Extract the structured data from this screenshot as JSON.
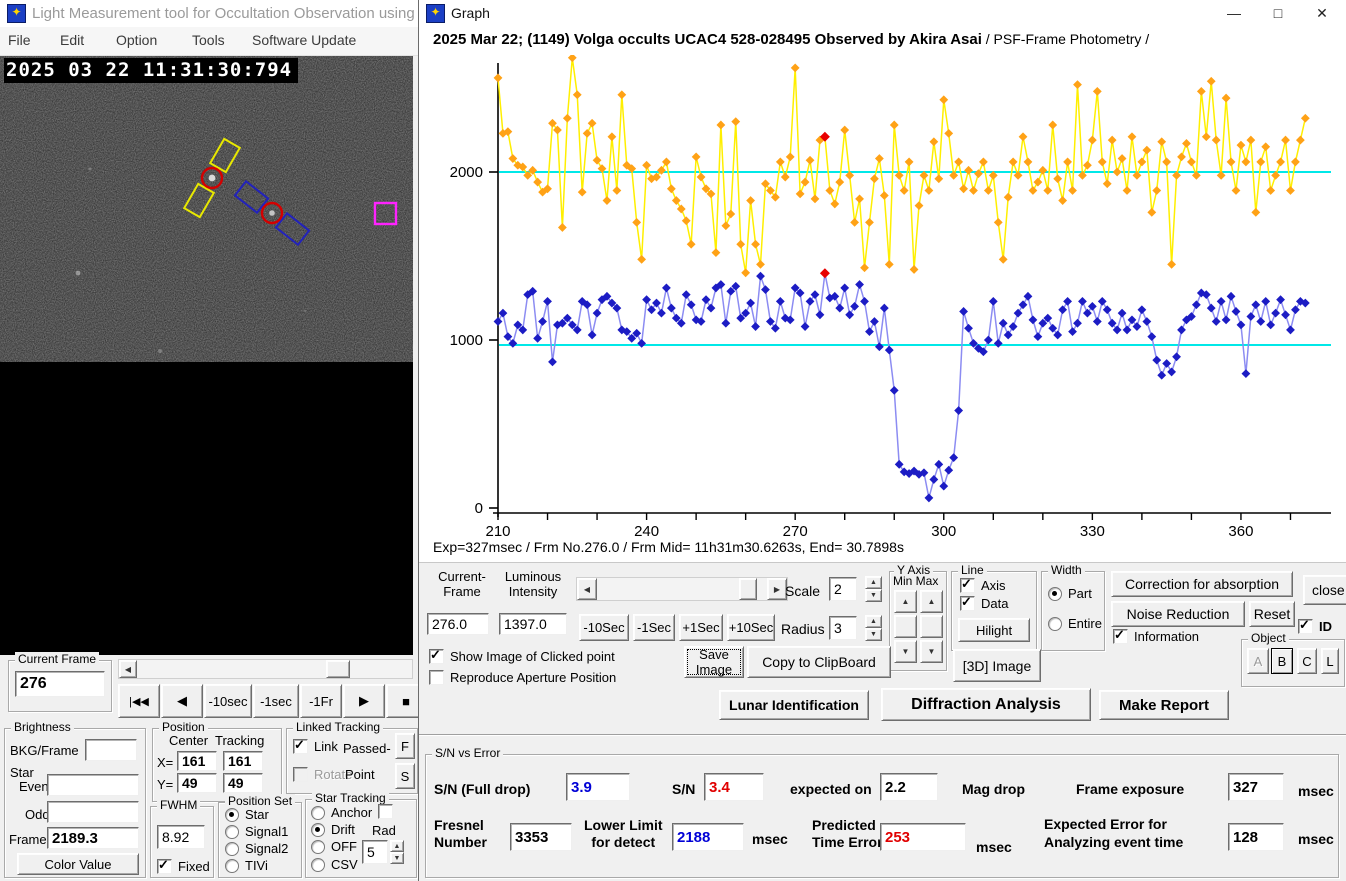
{
  "icons": {
    "app": "✦"
  },
  "glyphs": {
    "up": "▲",
    "down": "▼",
    "left": "◀",
    "right": "▶"
  },
  "left_window": {
    "title": "Light Measurement tool for Occultation Observation using",
    "menu": [
      "File",
      "Edit",
      "Option",
      "Tools",
      "Software Update"
    ],
    "video": {
      "timestamp": "2025 03 22 11:31:30:794"
    },
    "current_frame_group": {
      "label": "Current Frame",
      "value": "276"
    },
    "transport_buttons": [
      "|◀◀",
      "◀",
      "-10sec",
      "-1sec",
      "-1Fr",
      "▶",
      "■"
    ],
    "brightness": {
      "label": "Brightness",
      "bkg_frame": "BKG/Frame",
      "bkg_frame_value": "",
      "star": "Star",
      "even": "Even",
      "even_value": "",
      "odd": "Odd",
      "odd_value": "",
      "frame": "Frame",
      "frame_value": "2189.3",
      "color_value": "Color Value"
    },
    "position": {
      "label": "Position",
      "center": "Center",
      "tracking": "Tracking",
      "x": "X=",
      "y": "Y=",
      "x_center": "161",
      "x_tracking": "161",
      "y_center": "49",
      "y_tracking": "49"
    },
    "linked_tracking": {
      "label": "Linked Tracking",
      "link": "Link",
      "passed": "Passed-",
      "f": "F",
      "rotate": "Rotate",
      "point": "Point",
      "s": "S"
    },
    "fwhm": {
      "label": "FWHM",
      "value": "8.92",
      "fixed": "Fixed"
    },
    "position_set": {
      "label": "Position Set",
      "options": [
        "Star",
        "Signal1",
        "Signal2",
        "TIVi"
      ],
      "selected": "Star"
    },
    "star_tracking": {
      "label": "Star Tracking",
      "options": [
        "Anchor",
        "Drift",
        "OFF",
        "CSV"
      ],
      "selected": "Drift",
      "rad": "Rad",
      "rad_value": "5"
    }
  },
  "graph_window": {
    "title": "Graph",
    "win_minimize": "—",
    "win_maximize": "□",
    "win_close": "✕",
    "header_bold": "2025 Mar 22; (1149) Volga occults UCAC4 528-028495 Observed by Akira Asai",
    "header_normal": " / PSF-Frame Photometry /",
    "status_line": "Exp=327msec / Frm No.276.0 / Frm Mid= 11h31m30.6263s,  End= 30.7898s",
    "controls": {
      "current_frame_label_1": "Current-",
      "current_frame_label_2": "Frame",
      "current_frame_value": "276.0",
      "luminous_label_1": "Luminous",
      "luminous_label_2": "Intensity",
      "luminous_value": "1397.0",
      "sec_buttons": [
        "-10Sec",
        "-1Sec",
        "+1Sec",
        "+10Sec"
      ],
      "scale_label": "Scale",
      "scale_value": "2",
      "radius_label": "Radius",
      "radius_value": "3",
      "y_axis_label": "Y Axis",
      "y_axis_minmax": "Min Max",
      "line_label": "Line",
      "axis_cb": "Axis",
      "data_cb": "Data",
      "hilight": "Hilight",
      "width_label": "Width",
      "part": "Part",
      "entire": "Entire",
      "correction": "Correction for absorption",
      "noise_reduction": "Noise Reduction",
      "reset": "Reset",
      "close": "close",
      "information": "Information",
      "id_cb": "ID",
      "object_label": "Object",
      "object_buttons": [
        "A",
        "B",
        "C",
        "L"
      ],
      "show_image": "Show Image of Clicked point",
      "reproduce": "Reproduce Aperture Position",
      "save_image": "Save Image",
      "copy_clipboard": "Copy to ClipBoard",
      "image_3d": "[3D] Image",
      "lunar": "Lunar Identification",
      "diffraction": "Diffraction Analysis",
      "make_report": "Make Report"
    },
    "sn_panel": {
      "label": "S/N vs Error",
      "sn_full_label": "S/N (Full drop)",
      "sn_full_value": "3.9",
      "sn_full_color": "#0000d6",
      "sn_label": "S/N",
      "sn_value": "3.4",
      "sn_color": "#e00000",
      "expected_label": "expected on",
      "expected_value": "2.2",
      "expected_color": "#000000",
      "mag_drop": "Mag drop",
      "frame_exposure_label": "Frame exposure",
      "frame_exposure_value": "327",
      "frame_exposure_color": "#000000",
      "msec": "msec",
      "fresnel_label_1": "Fresnel",
      "fresnel_label_2": "Number",
      "fresnel_value": "3353",
      "fresnel_color": "#000000",
      "lower_label_1": "Lower Limit",
      "lower_label_2": "for detect",
      "lower_value": "2188",
      "lower_color": "#0000d6",
      "predicted_label_1": "Predicted",
      "predicted_label_2": "Time Error",
      "predicted_value": "253",
      "predicted_color": "#e00000",
      "expected_err_label_1": "Expected Error for",
      "expected_err_label_2": "Analyzing event time",
      "expected_err_value": "128",
      "expected_err_color": "#000000"
    }
  },
  "chart_data": {
    "type": "line",
    "title": "2025 Mar 22; (1149) Volga occults UCAC4 528-028495 Observed by Akira Asai / PSF-Frame Photometry /",
    "x_start": 210,
    "x_step": 1,
    "x_ticks_labeled": [
      210,
      240,
      270,
      300,
      330,
      360
    ],
    "x_tick_minor_step": 10,
    "y_ticks": [
      0,
      1000,
      2000
    ],
    "xlim": [
      208,
      378
    ],
    "ylim": [
      0,
      2750
    ],
    "grid": false,
    "legend": false,
    "hlines": [
      {
        "y": 2000,
        "color": "#00e8e8"
      },
      {
        "y": 970,
        "color": "#00e8e8"
      }
    ],
    "series": [
      {
        "name": "comparison-star-brightness",
        "line_color": "#ffef00",
        "marker_color": "#ffa216",
        "values": [
          2560,
          2230,
          2240,
          2080,
          2040,
          2030,
          1980,
          2010,
          1940,
          1880,
          1900,
          2290,
          2250,
          1670,
          2320,
          2680,
          2460,
          1880,
          2230,
          2290,
          2070,
          2020,
          1830,
          2210,
          1890,
          2460,
          2040,
          2020,
          1700,
          1480,
          2040,
          1960,
          1970,
          2010,
          2060,
          1900,
          1830,
          1780,
          1710,
          1570,
          2090,
          1970,
          1900,
          1870,
          1520,
          2280,
          1680,
          1750,
          2300,
          1570,
          1400,
          1830,
          1570,
          1450,
          1930,
          1890,
          1850,
          2060,
          1970,
          2090,
          2620,
          1870,
          1940,
          2070,
          1840,
          2190,
          2210,
          1890,
          1810,
          1940,
          2250,
          1980,
          1700,
          1840,
          1430,
          1700,
          1960,
          2080,
          1860,
          1450,
          2280,
          1980,
          1890,
          2060,
          1420,
          1800,
          1980,
          1890,
          2180,
          1960,
          2430,
          2230,
          1980,
          2060,
          1900,
          2010,
          1890,
          1990,
          2060,
          1890,
          1980,
          1700,
          1480,
          1850,
          2060,
          1980,
          2210,
          2060,
          1890,
          1940,
          2010,
          1890,
          2280,
          1960,
          1830,
          2060,
          1890,
          2520,
          1980,
          2040,
          2190,
          2480,
          2060,
          1930,
          2190,
          2000,
          2080,
          1890,
          2210,
          1980,
          2060,
          2130,
          1760,
          1890,
          2180,
          2060,
          1450,
          1980,
          2090,
          2170,
          2060,
          1980,
          2480,
          2210,
          2540,
          2190,
          1980,
          2440,
          2060,
          1890,
          2160,
          2060,
          2190,
          1760,
          2060,
          2150,
          1890,
          1980,
          2060,
          2190,
          1890,
          2060,
          2190,
          2320
        ]
      },
      {
        "name": "target-star-brightness",
        "line_color": "#8c8cf2",
        "marker_color": "#1c1cc4",
        "values": [
          1110,
          1160,
          1020,
          980,
          1090,
          1060,
          1270,
          1290,
          1010,
          1110,
          1230,
          870,
          1090,
          1100,
          1130,
          1090,
          1060,
          1230,
          1210,
          1030,
          1160,
          1240,
          1260,
          1220,
          1190,
          1060,
          1050,
          1010,
          1040,
          980,
          1240,
          1180,
          1220,
          1160,
          1310,
          1190,
          1130,
          1100,
          1270,
          1210,
          1120,
          1110,
          1240,
          1190,
          1310,
          1330,
          1100,
          1290,
          1320,
          1130,
          1160,
          1220,
          1080,
          1380,
          1300,
          1110,
          1070,
          1230,
          1130,
          1120,
          1310,
          1280,
          1080,
          1230,
          1270,
          1150,
          1397,
          1250,
          1260,
          1190,
          1310,
          1150,
          1200,
          1330,
          1230,
          1050,
          1110,
          960,
          1190,
          940,
          700,
          260,
          215,
          205,
          220,
          200,
          210,
          60,
          170,
          260,
          130,
          225,
          300,
          580,
          1170,
          1070,
          980,
          950,
          930,
          1000,
          1230,
          980,
          1100,
          1030,
          1080,
          1160,
          1210,
          1260,
          1120,
          1020,
          1100,
          1130,
          1070,
          1030,
          1180,
          1230,
          1050,
          1100,
          1230,
          1160,
          1200,
          1110,
          1230,
          1180,
          1100,
          1060,
          1160,
          1060,
          1120,
          1080,
          1180,
          1110,
          1020,
          880,
          790,
          860,
          810,
          900,
          1060,
          1120,
          1140,
          1210,
          1280,
          1270,
          1190,
          1110,
          1230,
          1120,
          1260,
          1170,
          1090,
          800,
          1140,
          1210,
          1110,
          1230,
          1090,
          1160,
          1240,
          1150,
          1060,
          1180,
          1230,
          1220
        ]
      }
    ],
    "highlight": {
      "frame": 276,
      "color": "#e80000",
      "values": [
        2210,
        1397
      ]
    }
  }
}
